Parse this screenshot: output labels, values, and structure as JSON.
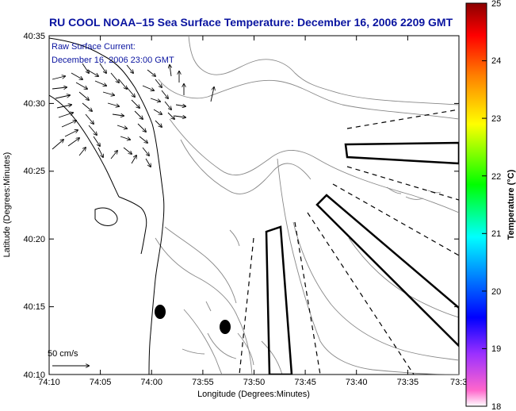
{
  "title": "RU COOL  NOAA–15  Sea Surface Temperature:  December 16, 2006 2209 GMT",
  "info": {
    "line1": "Raw Surface Current:",
    "line2": "December 16, 2006 23:00 GMT"
  },
  "axes": {
    "xlabel": "Longitude (Degrees:Minutes)",
    "ylabel": "Latitude (Degrees:Minutes)",
    "x_ticks": [
      "74:10",
      "74:05",
      "74:00",
      "73:55",
      "73:50",
      "73:45",
      "73:40",
      "73:35",
      "73:3"
    ],
    "y_ticks": [
      "40:35",
      "40:30",
      "40:25",
      "40:20",
      "40:15",
      "40:10"
    ]
  },
  "scale_label": "50 cm/s",
  "colorbar": {
    "label": "Temperature (°C)",
    "ticks": [
      "25",
      "24",
      "23",
      "22",
      "21",
      "20",
      "19",
      "18"
    ],
    "min": 18,
    "max": 25,
    "colors": [
      "#ff66cc",
      "#9b30ff",
      "#0000ff",
      "#00ffff",
      "#00ff00",
      "#ffff00",
      "#ff8000",
      "#ff0000",
      "#8b0000"
    ]
  }
}
